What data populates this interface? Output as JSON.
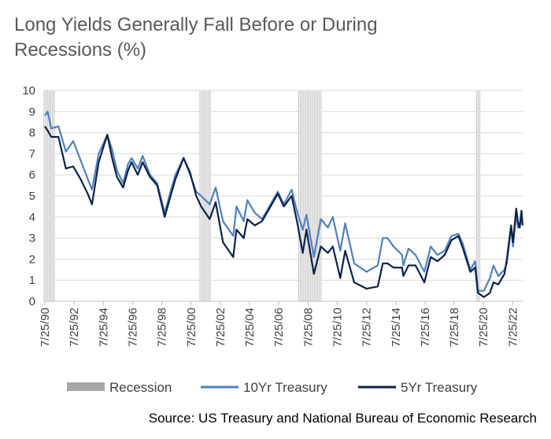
{
  "chart_data": {
    "type": "line",
    "title": "Long Yields Generally Fall Before or During Recessions (%)",
    "source": "Source: US Treasury and National Bureau of Economic Research",
    "x_tick_labels": [
      "7/25/90",
      "7/25/92",
      "7/25/94",
      "7/25/96",
      "7/25/98",
      "7/25/00",
      "7/25/02",
      "7/25/04",
      "7/25/06",
      "7/25/08",
      "7/25/10",
      "7/25/12",
      "7/25/14",
      "7/25/16",
      "7/25/18",
      "7/25/20",
      "7/25/22"
    ],
    "y_tick_labels": [
      "0",
      "1",
      "2",
      "3",
      "4",
      "5",
      "6",
      "7",
      "8",
      "9",
      "10"
    ],
    "xlim": [
      "1990-07-25",
      "2023-03-31"
    ],
    "ylim": [
      0,
      10
    ],
    "grid": "horizontal",
    "legend_position": "bottom",
    "legend": [
      "Recession",
      "10Yr Treasury",
      "5Yr Treasury"
    ],
    "recessions": [
      {
        "start": "1990-07-01",
        "end": "1991-03-31"
      },
      {
        "start": "2001-03-01",
        "end": "2001-11-30"
      },
      {
        "start": "2007-12-01",
        "end": "2009-06-30"
      },
      {
        "start": "2020-02-01",
        "end": "2020-04-30"
      }
    ],
    "series": [
      {
        "name": "10Yr Treasury",
        "color": "#4f81bd",
        "x": [
          "1990-07-25",
          "1990-10-01",
          "1991-01-01",
          "1991-07-01",
          "1992-01-01",
          "1992-07-01",
          "1993-01-01",
          "1993-07-01",
          "1993-10-15",
          "1994-04-01",
          "1994-11-01",
          "1995-03-01",
          "1995-07-01",
          "1995-12-01",
          "1996-04-01",
          "1996-07-01",
          "1996-12-01",
          "1997-04-01",
          "1997-10-01",
          "1998-04-01",
          "1998-10-05",
          "1999-03-01",
          "1999-07-01",
          "2000-01-20",
          "2000-07-01",
          "2000-12-01",
          "2001-04-01",
          "2001-11-01",
          "2002-04-01",
          "2002-10-01",
          "2003-06-13",
          "2003-09-01",
          "2004-03-01",
          "2004-06-01",
          "2004-12-01",
          "2005-06-01",
          "2005-12-01",
          "2006-06-30",
          "2006-12-01",
          "2007-06-12",
          "2007-11-01",
          "2008-03-15",
          "2008-06-15",
          "2008-12-18",
          "2009-06-10",
          "2009-12-01",
          "2010-04-05",
          "2010-10-08",
          "2011-02-08",
          "2011-09-22",
          "2012-07-25",
          "2013-05-01",
          "2013-09-05",
          "2013-12-31",
          "2014-06-01",
          "2014-12-31",
          "2015-01-30",
          "2015-06-10",
          "2015-12-01",
          "2016-07-08",
          "2016-12-16",
          "2017-06-01",
          "2017-12-01",
          "2018-05-17",
          "2018-11-08",
          "2019-03-01",
          "2019-09-01",
          "2020-01-01",
          "2020-03-09",
          "2020-08-04",
          "2021-01-01",
          "2021-03-31",
          "2021-08-01",
          "2021-12-31",
          "2022-03-01",
          "2022-06-14",
          "2022-08-01",
          "2022-10-21",
          "2022-12-01",
          "2023-01-15",
          "2023-03-01",
          "2023-03-31"
        ],
        "values": [
          8.8,
          9.0,
          8.2,
          8.3,
          7.1,
          7.6,
          6.7,
          5.8,
          5.3,
          7.0,
          7.9,
          7.2,
          6.2,
          5.6,
          6.5,
          6.8,
          6.3,
          6.9,
          6.0,
          5.6,
          4.2,
          5.2,
          6.0,
          6.8,
          6.0,
          5.2,
          5.0,
          4.6,
          5.4,
          3.8,
          3.1,
          4.5,
          3.8,
          4.8,
          4.2,
          3.9,
          4.5,
          5.2,
          4.6,
          5.3,
          4.2,
          3.4,
          4.1,
          2.1,
          3.9,
          3.5,
          4.0,
          2.4,
          3.7,
          1.8,
          1.4,
          1.7,
          3.0,
          3.0,
          2.6,
          2.2,
          1.7,
          2.5,
          2.2,
          1.4,
          2.6,
          2.2,
          2.4,
          3.1,
          3.2,
          2.7,
          1.5,
          1.9,
          0.5,
          0.5,
          1.1,
          1.7,
          1.2,
          1.5,
          1.8,
          3.5,
          2.6,
          4.2,
          3.5,
          3.5,
          4.0,
          3.6
        ]
      },
      {
        "name": "5Yr Treasury",
        "color": "#0d2148",
        "x": [
          "1990-07-25",
          "1990-10-01",
          "1991-01-01",
          "1991-07-01",
          "1992-01-01",
          "1992-07-01",
          "1993-01-01",
          "1993-07-01",
          "1993-10-15",
          "1994-04-01",
          "1994-11-01",
          "1995-03-01",
          "1995-07-01",
          "1995-12-01",
          "1996-04-01",
          "1996-07-01",
          "1996-12-01",
          "1997-04-01",
          "1997-10-01",
          "1998-04-01",
          "1998-10-05",
          "1999-03-01",
          "1999-07-01",
          "2000-01-20",
          "2000-07-01",
          "2000-12-01",
          "2001-04-01",
          "2001-11-01",
          "2002-04-01",
          "2002-10-01",
          "2003-06-13",
          "2003-09-01",
          "2004-03-01",
          "2004-06-01",
          "2004-12-01",
          "2005-06-01",
          "2005-12-01",
          "2006-06-30",
          "2006-12-01",
          "2007-06-12",
          "2007-11-01",
          "2008-03-15",
          "2008-06-15",
          "2008-12-18",
          "2009-06-10",
          "2009-12-01",
          "2010-04-05",
          "2010-10-08",
          "2011-02-08",
          "2011-09-22",
          "2012-07-25",
          "2013-05-01",
          "2013-09-05",
          "2013-12-31",
          "2014-06-01",
          "2014-12-31",
          "2015-01-30",
          "2015-06-10",
          "2015-12-01",
          "2016-07-08",
          "2016-12-16",
          "2017-06-01",
          "2017-12-01",
          "2018-05-17",
          "2018-11-08",
          "2019-03-01",
          "2019-09-01",
          "2020-01-01",
          "2020-03-09",
          "2020-08-04",
          "2021-01-01",
          "2021-03-31",
          "2021-08-01",
          "2021-12-31",
          "2022-03-01",
          "2022-06-14",
          "2022-08-01",
          "2022-10-21",
          "2022-12-01",
          "2023-01-15",
          "2023-03-01",
          "2023-03-31"
        ],
        "values": [
          8.3,
          8.1,
          7.8,
          7.8,
          6.3,
          6.4,
          5.8,
          5.1,
          4.6,
          6.6,
          7.9,
          6.8,
          5.9,
          5.4,
          6.2,
          6.6,
          6.0,
          6.6,
          5.9,
          5.5,
          4.0,
          5.0,
          5.8,
          6.8,
          6.1,
          5.0,
          4.5,
          3.9,
          4.7,
          2.8,
          2.1,
          3.4,
          3.0,
          3.9,
          3.6,
          3.8,
          4.4,
          5.1,
          4.5,
          5.0,
          3.7,
          2.3,
          3.4,
          1.3,
          2.6,
          2.3,
          2.6,
          1.1,
          2.4,
          0.9,
          0.6,
          0.7,
          1.8,
          1.8,
          1.6,
          1.6,
          1.2,
          1.7,
          1.7,
          0.9,
          2.1,
          1.9,
          2.2,
          2.9,
          3.1,
          2.5,
          1.4,
          1.6,
          0.4,
          0.2,
          0.4,
          0.9,
          0.8,
          1.3,
          2.0,
          3.6,
          2.8,
          4.4,
          3.8,
          3.5,
          4.3,
          3.6
        ]
      }
    ]
  }
}
